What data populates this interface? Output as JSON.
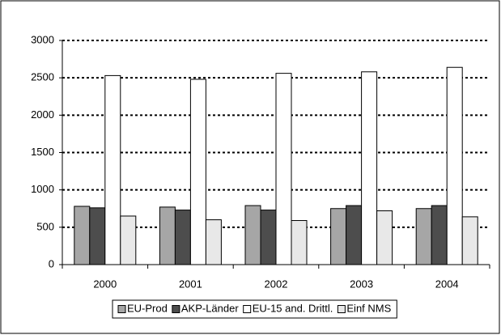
{
  "chart_data": {
    "type": "bar",
    "categories": [
      "2000",
      "2001",
      "2002",
      "2003",
      "2004"
    ],
    "series": [
      {
        "name": "EU-Prod",
        "color": "#a6a6a6",
        "values": [
          780,
          770,
          790,
          750,
          750
        ]
      },
      {
        "name": "AKP-Länder",
        "color": "#4d4d4d",
        "values": [
          760,
          730,
          730,
          790,
          790
        ]
      },
      {
        "name": "EU-15 and. Drittl.",
        "color": "#ffffff",
        "values": [
          2530,
          2480,
          2560,
          2580,
          2640
        ]
      },
      {
        "name": "Einf NMS",
        "color": "#e8e8e8",
        "values": [
          650,
          600,
          590,
          720,
          640
        ]
      }
    ],
    "ylim": [
      0,
      3000
    ],
    "yticks": [
      0,
      500,
      1000,
      1500,
      2000,
      2500,
      3000
    ],
    "grid": true,
    "legend": "bottom"
  }
}
